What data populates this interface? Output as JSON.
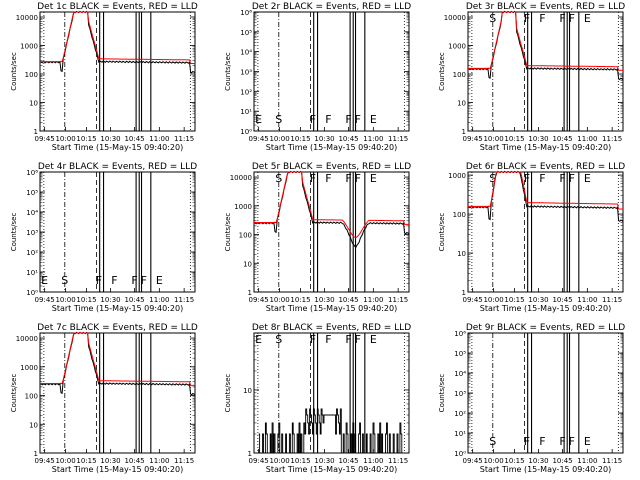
{
  "chart_data": [
    {
      "type": "line",
      "title": "Det 1c BLACK = Events, RED = LLD",
      "ylabel": "Counts/sec",
      "xlabel": "Start Time (15-May-15 09:40:20)",
      "yticks": [
        "1",
        "10",
        "100",
        "1000",
        "10000"
      ],
      "xticks": [
        "09:45",
        "10:00",
        "10:15",
        "10:30",
        "10:45",
        "11:00",
        "11:15"
      ],
      "ylog": true,
      "ylim": [
        1,
        15000
      ],
      "mode": "flare",
      "base": 260,
      "dip": false,
      "flags": [],
      "series": [
        {
          "name": "Events",
          "color": "#000000"
        },
        {
          "name": "LLD",
          "color": "#ff0000"
        }
      ]
    },
    {
      "type": "line",
      "title": "Det 2r BLACK = Events, RED = LLD",
      "ylabel": "Counts/sec",
      "xlabel": "Start Time (15-May-15 09:40:20)",
      "yticks": [
        "10⁰",
        "10¹",
        "10²",
        "10³",
        "10⁴",
        "10⁵",
        "10⁶"
      ],
      "xticks": [
        "09:45",
        "10:00",
        "10:15",
        "10:30",
        "10:45",
        "11:00",
        "11:15"
      ],
      "ylog": true,
      "ylim": [
        1,
        1000000
      ],
      "mode": "empty",
      "flags": [
        "E",
        "S",
        "F",
        "F",
        "F",
        "F",
        "E"
      ]
    },
    {
      "type": "line",
      "title": "Det 3r BLACK = Events, RED = LLD",
      "ylabel": "Counts/sec",
      "xlabel": "Start Time (15-May-15 09:40:20)",
      "yticks": [
        "1",
        "10",
        "100",
        "1000",
        "10000"
      ],
      "xticks": [
        "09:45",
        "10:00",
        "10:15",
        "10:30",
        "10:45",
        "11:00",
        "11:15"
      ],
      "ylog": true,
      "ylim": [
        1,
        15000
      ],
      "mode": "flare",
      "base": 150,
      "dip": false,
      "flags": [
        "S",
        "F",
        "F",
        "F",
        "F",
        "E"
      ],
      "series": [
        {
          "name": "Events",
          "color": "#000000"
        },
        {
          "name": "LLD",
          "color": "#ff0000"
        }
      ]
    },
    {
      "type": "line",
      "title": "Det 4r BLACK = Events, RED = LLD",
      "ylabel": "Counts/sec",
      "xlabel": "Start Time (15-May-15 09:40:20)",
      "yticks": [
        "10⁰",
        "10¹",
        "10²",
        "10³",
        "10⁴",
        "10⁵",
        "10⁶"
      ],
      "xticks": [
        "09:45",
        "10:00",
        "10:15",
        "10:30",
        "10:45",
        "11:00",
        "11:15"
      ],
      "ylog": true,
      "ylim": [
        1,
        1000000
      ],
      "mode": "empty",
      "flags": [
        "E",
        "S",
        "F",
        "F",
        "F",
        "F",
        "E"
      ]
    },
    {
      "type": "line",
      "title": "Det 5r BLACK = Events, RED = LLD",
      "ylabel": "Counts/sec",
      "xlabel": "Start Time (15-May-15 09:40:20)",
      "yticks": [
        "1",
        "10",
        "100",
        "1000",
        "10000"
      ],
      "xticks": [
        "09:45",
        "10:00",
        "10:15",
        "10:30",
        "10:45",
        "11:00",
        "11:15"
      ],
      "ylog": true,
      "ylim": [
        1,
        15000
      ],
      "mode": "flare",
      "base": 250,
      "dip": true,
      "flags": [
        "S",
        "F",
        "F",
        "F",
        "F",
        "E"
      ],
      "series": [
        {
          "name": "Events",
          "color": "#000000"
        },
        {
          "name": "LLD",
          "color": "#ff0000"
        }
      ]
    },
    {
      "type": "line",
      "title": "Det 6r BLACK = Events, RED = LLD",
      "ylabel": "Counts/sec",
      "xlabel": "Start Time (15-May-15 09:40:20)",
      "yticks": [
        "1",
        "10",
        "100",
        "1000"
      ],
      "xticks": [
        "09:45",
        "10:00",
        "10:15",
        "10:30",
        "10:45",
        "11:00",
        "11:15"
      ],
      "ylog": true,
      "ylim": [
        1,
        1200
      ],
      "mode": "flare",
      "base": 150,
      "dip": false,
      "flags": [
        "S",
        "F",
        "F",
        "F",
        "F",
        "E"
      ],
      "series": [
        {
          "name": "Events",
          "color": "#000000"
        },
        {
          "name": "LLD",
          "color": "#ff0000"
        }
      ]
    },
    {
      "type": "line",
      "title": "Det 7c BLACK = Events, RED = LLD",
      "ylabel": "Counts/sec",
      "xlabel": "Start Time (15-May-15 09:40:20)",
      "yticks": [
        "1",
        "10",
        "100",
        "1000",
        "10000"
      ],
      "xticks": [
        "09:45",
        "10:00",
        "10:15",
        "10:30",
        "10:45",
        "11:00",
        "11:15"
      ],
      "ylog": true,
      "ylim": [
        1,
        15000
      ],
      "mode": "flare",
      "base": 250,
      "dip": false,
      "flags": [],
      "series": [
        {
          "name": "Events",
          "color": "#000000"
        },
        {
          "name": "LLD",
          "color": "#ff0000"
        }
      ]
    },
    {
      "type": "line",
      "title": "Det 8r BLACK = Events, RED = LLD",
      "ylabel": "Counts/sec",
      "xlabel": "Start Time (15-May-15 09:40:20)",
      "yticks": [
        "1",
        "10"
      ],
      "xticks": [
        "09:45",
        "10:00",
        "10:15",
        "10:30",
        "10:45",
        "11:00",
        "11:15"
      ],
      "ylog": true,
      "ylim": [
        1,
        80
      ],
      "mode": "noise",
      "flags": [
        "E",
        "S",
        "F",
        "F",
        "F",
        "F",
        "E"
      ],
      "series": [
        {
          "name": "Events",
          "color": "#000000"
        }
      ]
    },
    {
      "type": "line",
      "title": "Det 9r BLACK = Events, RED = LLD",
      "ylabel": "Counts/sec",
      "xlabel": "Start Time (15-May-15 09:40:20)",
      "yticks": [
        "10⁰",
        "10¹",
        "10²",
        "10³",
        "10⁴",
        "10⁵",
        "10⁶"
      ],
      "xticks": [
        "09:45",
        "10:00",
        "10:15",
        "10:30",
        "10:45",
        "11:00",
        "11:15"
      ],
      "ylog": true,
      "ylim": [
        1,
        1000000
      ],
      "mode": "empty",
      "flags": [
        "S",
        "F",
        "F",
        "F",
        "F",
        "E"
      ]
    }
  ]
}
